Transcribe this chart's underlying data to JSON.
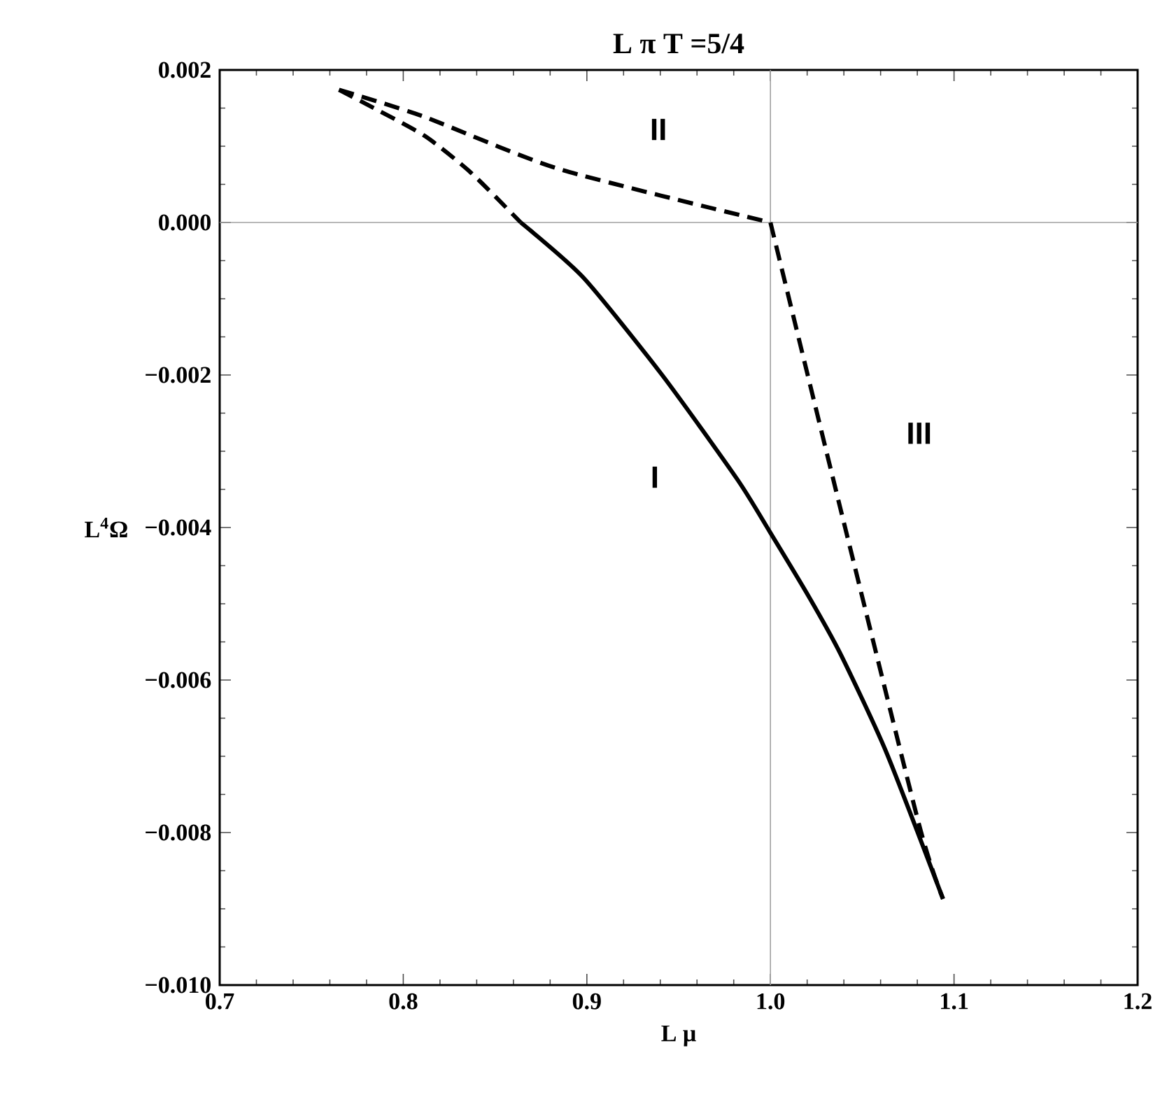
{
  "chart_data": {
    "type": "line",
    "title": "L π T =5/4",
    "xlabel": "L μ",
    "ylabel": "L$^{4}$Ω",
    "xlim": [
      0.7,
      1.2
    ],
    "ylim": [
      -0.01,
      0.002
    ],
    "xticks": [
      {
        "value": 0.7,
        "label": "0.7"
      },
      {
        "value": 0.8,
        "label": "0.8"
      },
      {
        "value": 0.9,
        "label": "0.9"
      },
      {
        "value": 1.0,
        "label": "1.0"
      },
      {
        "value": 1.1,
        "label": "1.1"
      },
      {
        "value": 1.2,
        "label": "1.2"
      }
    ],
    "yticks": [
      {
        "value": -0.01,
        "label": "−0.010"
      },
      {
        "value": -0.008,
        "label": "−0.008"
      },
      {
        "value": -0.006,
        "label": "−0.006"
      },
      {
        "value": -0.004,
        "label": "−0.004"
      },
      {
        "value": -0.002,
        "label": "−0.002"
      },
      {
        "value": 0.0,
        "label": "0.000"
      },
      {
        "value": 0.002,
        "label": "0.002"
      }
    ],
    "series": [
      {
        "color": "#000000",
        "line_style": "solid",
        "x": [
          0.864,
          0.898,
          0.941,
          0.982,
          1.0,
          1.021,
          1.038,
          1.063,
          1.094
        ],
        "values": [
          0.0,
          -0.00072,
          -0.002,
          -0.00337,
          -0.00407,
          -0.00491,
          -0.00565,
          -0.00694,
          -0.00887
        ]
      },
      {
        "color": "#000000",
        "line_style": "dashed",
        "x": [
          0.765,
          0.784,
          0.812,
          0.837,
          0.864
        ],
        "values": [
          0.00174,
          0.0015,
          0.00113,
          0.00065,
          0.0
        ]
      },
      {
        "color": "#000000",
        "line_style": "dashed",
        "x": [
          0.765,
          0.811,
          0.885,
          1.0
        ],
        "values": [
          0.00174,
          0.00139,
          0.0007,
          0.0
        ]
      },
      {
        "color": "#000000",
        "line_style": "dashed",
        "x": [
          1.0,
          1.038,
          1.081,
          1.094
        ],
        "values": [
          0.0,
          -0.00374,
          -0.0079,
          -0.00887
        ]
      }
    ],
    "ref_lines": [
      {
        "axis": "x",
        "value": 1.0,
        "color": "#a0a0a0"
      },
      {
        "axis": "y",
        "value": 0.0,
        "color": "#a0a0a0"
      }
    ],
    "annotations": [
      "I",
      "II",
      "III"
    ]
  }
}
